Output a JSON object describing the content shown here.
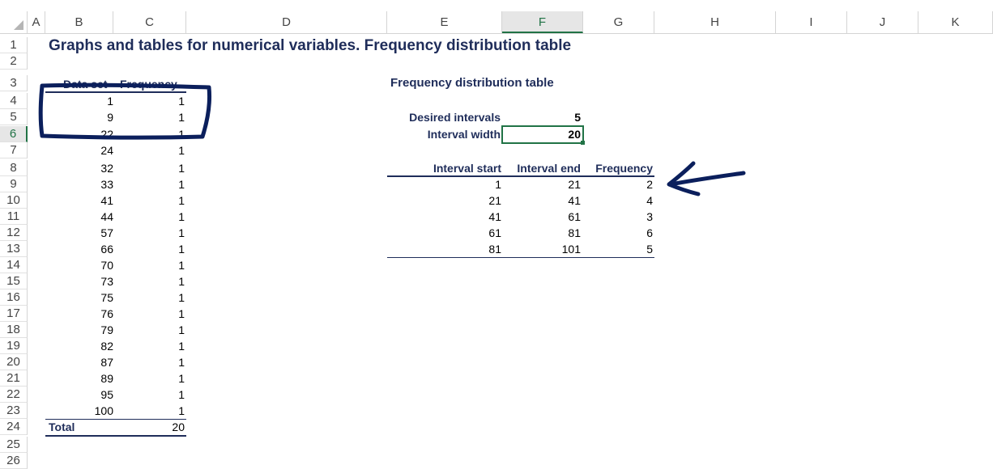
{
  "columns": [
    "A",
    "B",
    "C",
    "D",
    "E",
    "F",
    "G",
    "H",
    "I",
    "J",
    "K"
  ],
  "selected_column": "F",
  "selected_row": "6",
  "rows": [
    "1",
    "2",
    "3",
    "4",
    "5",
    "6",
    "7",
    "8",
    "9",
    "10",
    "11",
    "12",
    "13",
    "14",
    "15",
    "16",
    "17",
    "18",
    "19",
    "20",
    "21",
    "22",
    "23",
    "24",
    "25",
    "26"
  ],
  "sheet": {
    "title": "Graphs and tables for numerical variables. Frequency distribution table",
    "left_table": {
      "header_data_set": "Data set",
      "header_frequency": "Frequency",
      "data": [
        "1",
        "9",
        "22",
        "24",
        "32",
        "33",
        "41",
        "44",
        "57",
        "66",
        "70",
        "73",
        "75",
        "76",
        "79",
        "82",
        "87",
        "89",
        "95",
        "100"
      ],
      "frequency": [
        "1",
        "1",
        "1",
        "1",
        "1",
        "1",
        "1",
        "1",
        "1",
        "1",
        "1",
        "1",
        "1",
        "1",
        "1",
        "1",
        "1",
        "1",
        "1",
        "1"
      ],
      "total_label": "Total",
      "total_value": "20"
    },
    "right_table": {
      "title": "Frequency distribution table",
      "desired_intervals_label": "Desired intervals",
      "desired_intervals_value": "5",
      "interval_width_label": "Interval width",
      "interval_width_value": "20",
      "col_start": "Interval start",
      "col_end": "Interval end",
      "col_frequency": "Frequency",
      "intervals": [
        {
          "start": "1",
          "end": "21",
          "freq": "2"
        },
        {
          "start": "21",
          "end": "41",
          "freq": "4"
        },
        {
          "start": "41",
          "end": "61",
          "freq": "3"
        },
        {
          "start": "61",
          "end": "81",
          "freq": "6"
        },
        {
          "start": "81",
          "end": "101",
          "freq": "5"
        }
      ]
    }
  },
  "colors": {
    "header_blue": "#1f2d5a",
    "excel_green": "#217346",
    "ink": "#0b1f5c"
  }
}
